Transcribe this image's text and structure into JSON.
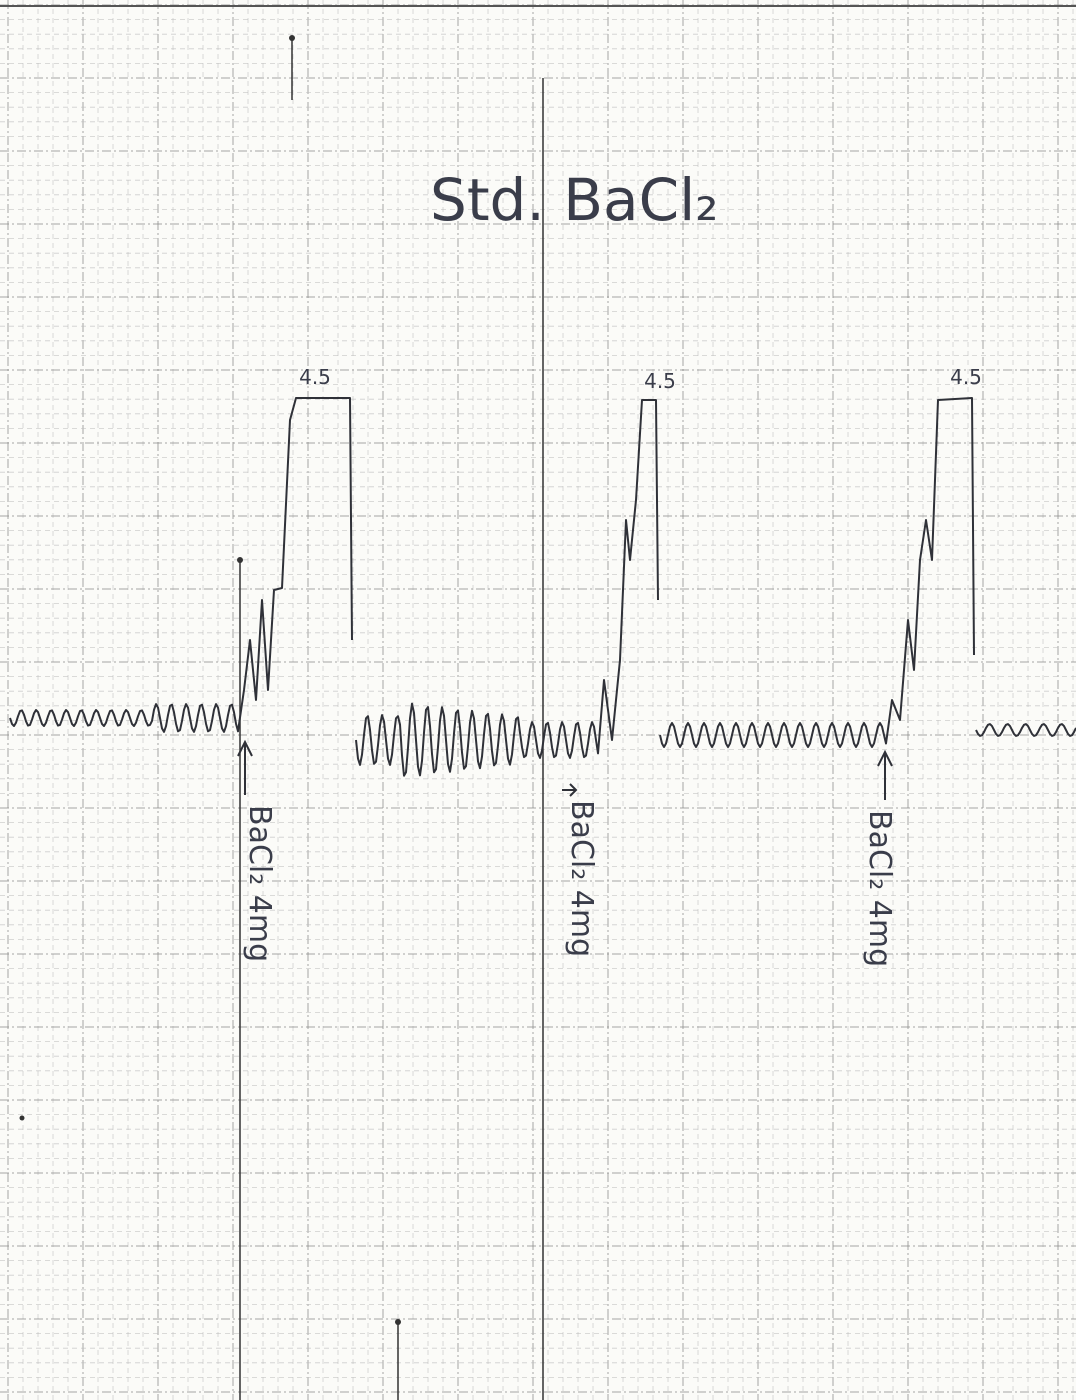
{
  "title": "Std. BaCl₂",
  "traces": [
    {
      "peak_label": "4.5",
      "annotation": "BaCl₂ 4mg"
    },
    {
      "peak_label": "4.5",
      "annotation": "BaCl₂ 4mg"
    },
    {
      "peak_label": "4.5",
      "annotation": "BaCl₂ 4mg"
    }
  ]
}
